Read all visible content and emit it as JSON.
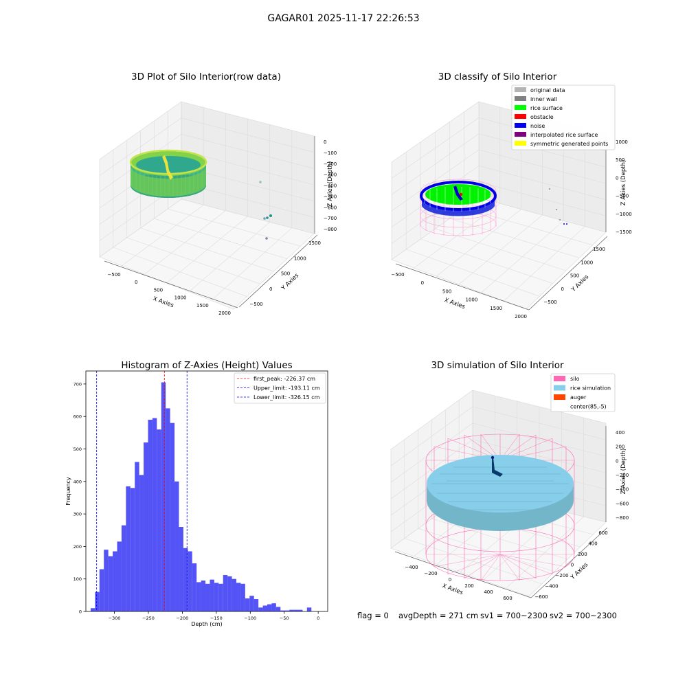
{
  "figure": {
    "suptitle": "GAGAR01 2025-11-17 22:26:53",
    "status": {
      "flag": "flag = 0",
      "avg": "avgDepth = 271 cm",
      "sv1": "sv1 = 700~2300",
      "sv2": "sv2 = 700~2300"
    }
  },
  "chart_data": [
    {
      "type": "scatter",
      "title": "3D Plot of Silo Interior(row data)",
      "xlabel": "X Axies",
      "ylabel": "Y Axies",
      "zlabel": "Z Axies (Depth)",
      "xticks": [
        "−500",
        "0",
        "500",
        "1000",
        "1500",
        "2000"
      ],
      "yticks": [
        "−500",
        "0",
        "500",
        "1000",
        "1500"
      ],
      "zticks": [
        "0",
        "−100",
        "−200",
        "−300",
        "−400",
        "−500",
        "−600",
        "−700",
        "−800"
      ],
      "colormap": [
        "#2a9d8f",
        "#5ec962",
        "#b5de2b",
        "#fde725"
      ],
      "outlier_points": [
        {
          "x": 1500,
          "y": 600,
          "z": -420
        },
        {
          "x": 1600,
          "y": 500,
          "z": -700
        },
        {
          "x": 1650,
          "y": 450,
          "z": -705
        },
        {
          "x": 1700,
          "y": 550,
          "z": -690
        },
        {
          "x": 1750,
          "y": 300,
          "z": -840
        }
      ]
    },
    {
      "type": "scatter",
      "title": "3D classify of Silo Interior",
      "xlabel": "X Axies",
      "ylabel": "Y Axies",
      "zlabel": "Z Axies (Depth)",
      "xticks": [
        "−500",
        "0",
        "500",
        "1000",
        "1500",
        "2000"
      ],
      "yticks": [
        "−500",
        "0",
        "500",
        "1000",
        "1500"
      ],
      "zticks": [
        "1000",
        "500",
        "0",
        "−500",
        "−1000",
        "−1500"
      ],
      "legend_position": "top-right",
      "legend": [
        {
          "label": "original data",
          "color": "#b4b4b4"
        },
        {
          "label": "inner wall",
          "color": "#808080"
        },
        {
          "label": "rice surface",
          "color": "#00ff00"
        },
        {
          "label": "obstacle",
          "color": "#ff0000"
        },
        {
          "label": "noise",
          "color": "#0000ee"
        },
        {
          "label": "interpolated rice surface",
          "color": "#800080"
        },
        {
          "label": "symmetric generated points",
          "color": "#ffff00"
        }
      ]
    },
    {
      "type": "bar",
      "title": "Histogram of Z-Axies (Height) Values",
      "xlabel": "Depth (cm)",
      "ylabel": "Frequency",
      "xlim": [
        -342,
        14
      ],
      "ylim": [
        0,
        740
      ],
      "xticks": [
        -300,
        -250,
        -200,
        -150,
        -100,
        -50,
        0
      ],
      "yticks": [
        0,
        100,
        200,
        300,
        400,
        500,
        600,
        700
      ],
      "bar_color": "#4a4af5",
      "bins": {
        "start": -335,
        "width": 6.5,
        "counts": [
          10,
          60,
          130,
          190,
          170,
          185,
          215,
          265,
          385,
          380,
          460,
          420,
          520,
          590,
          595,
          560,
          705,
          625,
          580,
          400,
          260,
          195,
          185,
          148,
          90,
          95,
          85,
          98,
          88,
          85,
          112,
          108,
          100,
          88,
          85,
          40,
          48,
          38,
          12,
          18,
          22,
          25,
          14,
          3,
          3,
          5,
          5,
          5,
          0,
          12
        ]
      },
      "lines": [
        {
          "label": "first_peak: -226.37 cm",
          "x": -226.37,
          "color": "#ff0000"
        },
        {
          "label": "Upper_limit: -193.11 cm",
          "x": -193.11,
          "color": "#0000ff"
        },
        {
          "label": "Lower_limit: -326.15 cm",
          "x": -326.15,
          "color": "#0000ff"
        }
      ],
      "legend_position": "top-right"
    },
    {
      "type": "scatter",
      "title": "3D simulation of Silo Interior",
      "xlabel": "X Axies",
      "ylabel": "Y Axies",
      "zlabel": "Z Axies (Depth)",
      "xticks": [
        "−400",
        "−200",
        "0",
        "200",
        "400",
        "600"
      ],
      "yticks": [
        "600",
        "400",
        "200",
        "0",
        "−200",
        "−400",
        "−600"
      ],
      "zticks": [
        "400",
        "200",
        "0",
        "−200",
        "−400",
        "−600",
        "−800"
      ],
      "legend_position": "top-right",
      "legend": [
        {
          "label": "silo",
          "color": "#ff69b4"
        },
        {
          "label": "rice simulation",
          "color": "#87ceeb"
        },
        {
          "label": "auger",
          "color": "#ff4500"
        },
        {
          "label": "center(85,-5)",
          "color": "#ffffff"
        }
      ]
    }
  ]
}
